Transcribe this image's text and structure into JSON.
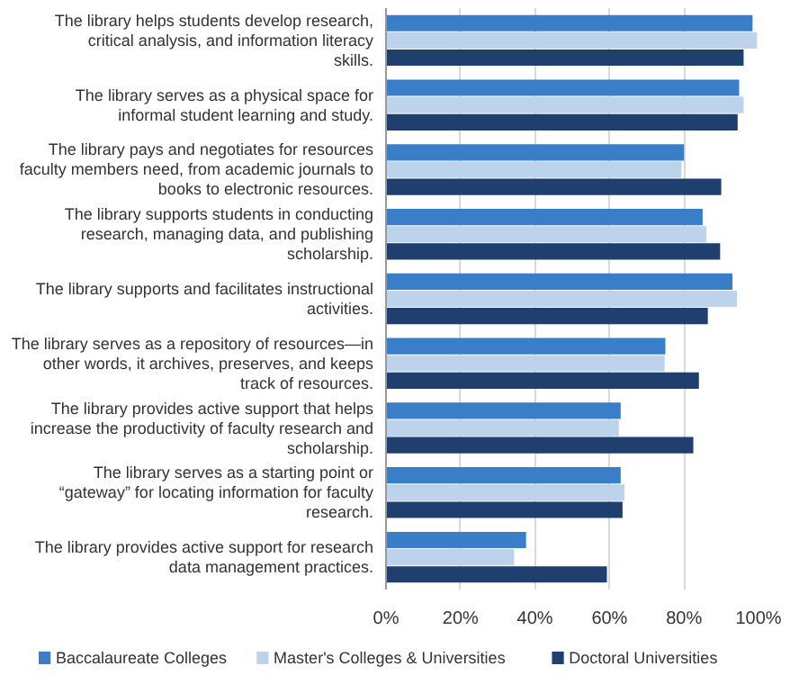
{
  "chart_data": {
    "type": "bar",
    "orientation": "horizontal",
    "categories": [
      "The library helps students develop research, critical analysis, and information literacy skills.",
      "The library serves as a physical space for informal student learning and study.",
      "The library pays and negotiates for resources faculty members need, from academic journals to books to electronic resources.",
      "The library supports students in conducting research, managing data, and publishing scholarship.",
      "The library supports and facilitates instructional activities.",
      "The library serves as a repository of resources—in other words, it archives, preserves, and keeps track of resources.",
      "The library provides active support that helps increase the productivity of faculty research and scholarship.",
      "The library serves as a starting point or “gateway” for locating information for faculty research.",
      "The library provides active support for research data management practices."
    ],
    "series": [
      {
        "name": "Baccalaureate Colleges",
        "color": "#3a7dc9",
        "values": [
          98.4,
          94.8,
          80,
          85,
          93,
          75,
          63,
          63,
          37.6
        ]
      },
      {
        "name": "Master's Colleges & Universities",
        "color": "#bdd3ec",
        "values": [
          99.6,
          96,
          79.3,
          86,
          94.2,
          74.8,
          62.5,
          64,
          34.4
        ]
      },
      {
        "name": "Doctoral Universities",
        "color": "#1f3f6e",
        "values": [
          96,
          94.4,
          90,
          89.7,
          86.4,
          84,
          82.5,
          63.5,
          59.3
        ]
      }
    ],
    "xlim": [
      0,
      100
    ],
    "xticks": [
      {
        "value": 0,
        "label": "0%"
      },
      {
        "value": 20,
        "label": "20%"
      },
      {
        "value": 40,
        "label": "40%"
      },
      {
        "value": 60,
        "label": "60%"
      },
      {
        "value": 80,
        "label": "80%"
      },
      {
        "value": 100,
        "label": "100%"
      }
    ],
    "grid": "x",
    "legend": "bottom"
  }
}
